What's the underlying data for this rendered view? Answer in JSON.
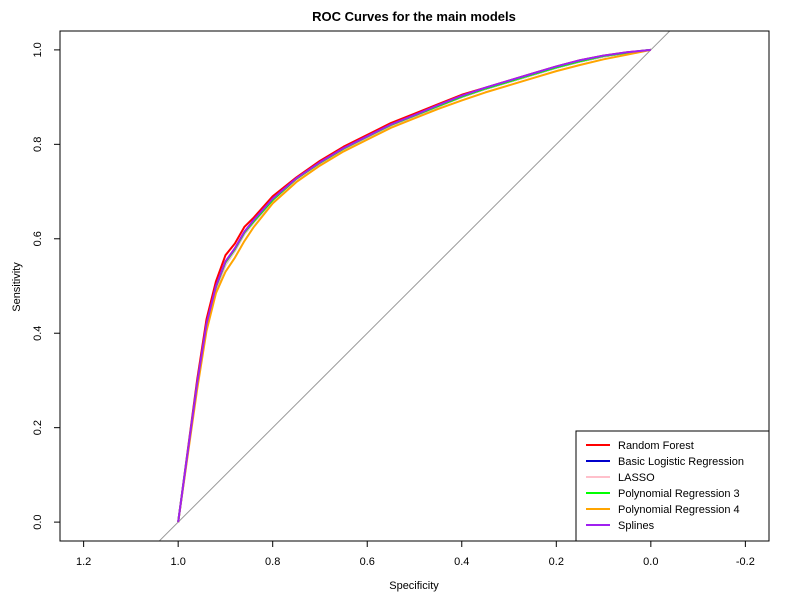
{
  "chart_data": {
    "type": "line",
    "title": "ROC Curves for the main models",
    "xlabel": "Specificity",
    "ylabel": "Sensitivity",
    "x_reversed": true,
    "xlim": [
      1.25,
      -0.25
    ],
    "ylim": [
      -0.04,
      1.04
    ],
    "xticks": [
      "1.2",
      "1.0",
      "0.8",
      "0.6",
      "0.4",
      "0.2",
      "0.0",
      "-0.2"
    ],
    "yticks": [
      "0.0",
      "0.2",
      "0.4",
      "0.6",
      "0.8",
      "1.0"
    ],
    "diagonal_color": "#999999",
    "legend_position": "bottom-right",
    "series": [
      {
        "name": "Random Forest",
        "color": "#ff0000",
        "specificity": [
          1.0,
          0.98,
          0.96,
          0.94,
          0.92,
          0.9,
          0.88,
          0.86,
          0.84,
          0.8,
          0.75,
          0.7,
          0.65,
          0.6,
          0.55,
          0.5,
          0.45,
          0.4,
          0.35,
          0.3,
          0.25,
          0.2,
          0.15,
          0.1,
          0.05,
          0.0
        ],
        "sensitivity": [
          0.0,
          0.15,
          0.3,
          0.43,
          0.51,
          0.565,
          0.59,
          0.625,
          0.645,
          0.69,
          0.73,
          0.765,
          0.795,
          0.82,
          0.845,
          0.865,
          0.885,
          0.905,
          0.92,
          0.935,
          0.95,
          0.965,
          0.978,
          0.988,
          0.995,
          1.0
        ]
      },
      {
        "name": "Basic Logistic Regression",
        "color": "#0000cc",
        "specificity": [
          1.0,
          0.98,
          0.96,
          0.94,
          0.92,
          0.9,
          0.88,
          0.86,
          0.84,
          0.8,
          0.75,
          0.7,
          0.65,
          0.6,
          0.55,
          0.5,
          0.45,
          0.4,
          0.35,
          0.3,
          0.25,
          0.2,
          0.15,
          0.1,
          0.05,
          0.0
        ],
        "sensitivity": [
          0.0,
          0.145,
          0.29,
          0.415,
          0.495,
          0.545,
          0.575,
          0.61,
          0.635,
          0.68,
          0.725,
          0.76,
          0.79,
          0.815,
          0.84,
          0.86,
          0.88,
          0.9,
          0.917,
          0.932,
          0.947,
          0.962,
          0.975,
          0.986,
          0.994,
          1.0
        ]
      },
      {
        "name": "LASSO",
        "color": "#ffc0cb",
        "specificity": [
          1.0,
          0.98,
          0.96,
          0.94,
          0.92,
          0.9,
          0.88,
          0.86,
          0.84,
          0.8,
          0.75,
          0.7,
          0.65,
          0.6,
          0.55,
          0.5,
          0.45,
          0.4,
          0.35,
          0.3,
          0.25,
          0.2,
          0.15,
          0.1,
          0.05,
          0.0
        ],
        "sensitivity": [
          0.0,
          0.145,
          0.29,
          0.415,
          0.495,
          0.545,
          0.575,
          0.61,
          0.635,
          0.68,
          0.725,
          0.76,
          0.79,
          0.815,
          0.84,
          0.86,
          0.88,
          0.9,
          0.917,
          0.932,
          0.947,
          0.962,
          0.975,
          0.986,
          0.994,
          1.0
        ]
      },
      {
        "name": "Polynomial Regression 3",
        "color": "#00ff00",
        "specificity": [
          1.0,
          0.98,
          0.96,
          0.94,
          0.92,
          0.9,
          0.88,
          0.86,
          0.84,
          0.8,
          0.75,
          0.7,
          0.65,
          0.6,
          0.55,
          0.5,
          0.45,
          0.4,
          0.35,
          0.3,
          0.25,
          0.2,
          0.15,
          0.1,
          0.05,
          0.0
        ],
        "sensitivity": [
          0.0,
          0.146,
          0.292,
          0.418,
          0.498,
          0.55,
          0.578,
          0.613,
          0.637,
          0.682,
          0.727,
          0.761,
          0.791,
          0.816,
          0.841,
          0.861,
          0.881,
          0.901,
          0.918,
          0.933,
          0.948,
          0.963,
          0.976,
          0.987,
          0.994,
          1.0
        ]
      },
      {
        "name": "Polynomial Regression 4",
        "color": "#ffa500",
        "specificity": [
          1.0,
          0.98,
          0.96,
          0.94,
          0.92,
          0.9,
          0.88,
          0.86,
          0.84,
          0.8,
          0.75,
          0.7,
          0.65,
          0.6,
          0.55,
          0.5,
          0.45,
          0.4,
          0.35,
          0.3,
          0.25,
          0.2,
          0.15,
          0.1,
          0.05,
          0.0
        ],
        "sensitivity": [
          0.0,
          0.14,
          0.28,
          0.405,
          0.485,
          0.53,
          0.56,
          0.595,
          0.625,
          0.675,
          0.72,
          0.755,
          0.785,
          0.81,
          0.835,
          0.855,
          0.875,
          0.893,
          0.91,
          0.925,
          0.94,
          0.955,
          0.968,
          0.98,
          0.99,
          1.0
        ]
      },
      {
        "name": "Splines",
        "color": "#a020f0",
        "specificity": [
          1.0,
          0.98,
          0.96,
          0.94,
          0.92,
          0.9,
          0.88,
          0.86,
          0.84,
          0.8,
          0.75,
          0.7,
          0.65,
          0.6,
          0.55,
          0.5,
          0.45,
          0.4,
          0.35,
          0.3,
          0.25,
          0.2,
          0.15,
          0.1,
          0.05,
          0.0
        ],
        "sensitivity": [
          0.0,
          0.147,
          0.293,
          0.42,
          0.5,
          0.552,
          0.58,
          0.615,
          0.64,
          0.685,
          0.728,
          0.762,
          0.792,
          0.817,
          0.842,
          0.862,
          0.883,
          0.903,
          0.92,
          0.935,
          0.95,
          0.965,
          0.978,
          0.988,
          0.995,
          1.0
        ]
      }
    ]
  }
}
